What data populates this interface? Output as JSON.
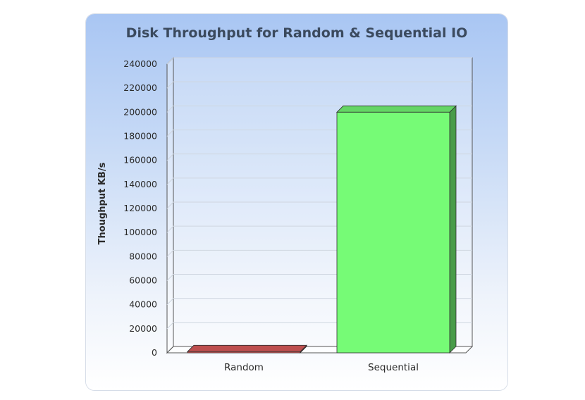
{
  "chart_data": {
    "type": "bar",
    "title": "Disk Throughput for Random & Sequential IO",
    "xlabel": "",
    "ylabel": "Thoughput KB/s",
    "categories": [
      "Random",
      "Sequential"
    ],
    "values": [
      1000,
      200000
    ],
    "ylim": [
      0,
      240000
    ],
    "yticks": [
      0,
      20000,
      40000,
      60000,
      80000,
      100000,
      120000,
      140000,
      160000,
      180000,
      200000,
      220000,
      240000
    ],
    "colors": [
      "#e05d5d",
      "#76fb76"
    ],
    "grid": true,
    "legend": "none",
    "style": "3d"
  }
}
